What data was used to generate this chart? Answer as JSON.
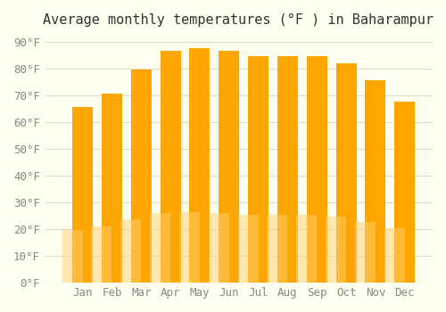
{
  "title": "Average monthly temperatures (°F ) in Baharampur",
  "months": [
    "Jan",
    "Feb",
    "Mar",
    "Apr",
    "May",
    "Jun",
    "Jul",
    "Aug",
    "Sep",
    "Oct",
    "Nov",
    "Dec"
  ],
  "values": [
    65.5,
    70.5,
    79.5,
    86.5,
    87.5,
    86.5,
    84.5,
    84.5,
    84.5,
    82.0,
    75.5,
    67.5
  ],
  "bar_color_top": "#FFA500",
  "bar_color_bottom": "#FFD070",
  "ylim": [
    0,
    92
  ],
  "yticks": [
    0,
    10,
    20,
    30,
    40,
    50,
    60,
    70,
    80,
    90
  ],
  "ytick_labels": [
    "0°F",
    "10°F",
    "20°F",
    "30°F",
    "40°F",
    "50°F",
    "60°F",
    "70°F",
    "80°F",
    "90°F"
  ],
  "background_color": "#FFFFF0",
  "grid_color": "#DDDDCC",
  "title_fontsize": 11,
  "tick_fontsize": 9,
  "bar_edge_color": "none"
}
